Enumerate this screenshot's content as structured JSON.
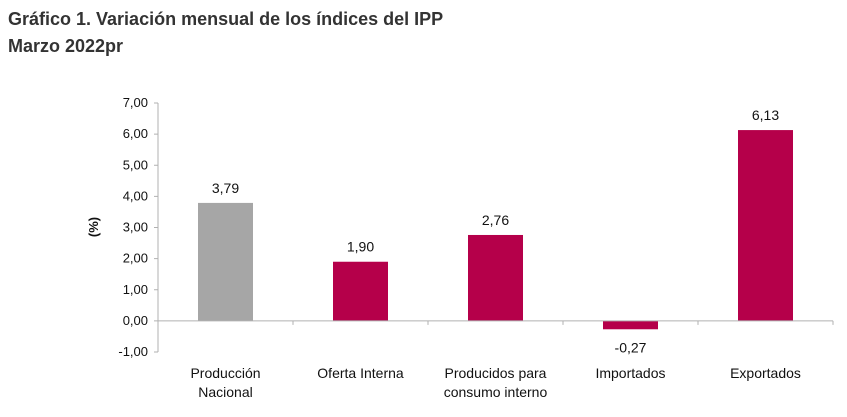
{
  "header": {
    "title": "Gráfico 1. Variación mensual de los índices del IPP",
    "subtitle": "Marzo 2022pr"
  },
  "colors": {
    "accent": "#B5004A",
    "gray": "#A6A6A6"
  },
  "chart_data": {
    "type": "bar",
    "title": "Gráfico 1. Variación mensual de los índices del IPP",
    "subtitle": "Marzo 2022pr",
    "ylabel": "(%)",
    "xlabel": "",
    "ylim": [
      -1,
      7
    ],
    "yticks": [
      "-1,00",
      "0,00",
      "1,00",
      "2,00",
      "3,00",
      "4,00",
      "5,00",
      "6,00",
      "7,00"
    ],
    "categories": [
      [
        "Producción",
        "Nacional"
      ],
      [
        "Oferta Interna"
      ],
      [
        "Producidos para",
        "consumo interno"
      ],
      [
        "Importados"
      ],
      [
        "Exportados"
      ]
    ],
    "values": [
      3.79,
      1.9,
      2.76,
      -0.27,
      6.13
    ],
    "value_labels": [
      "3,79",
      "1,90",
      "2,76",
      "-0,27",
      "6,13"
    ],
    "bar_colors": [
      "#A6A6A6",
      "#B5004A",
      "#B5004A",
      "#B5004A",
      "#B5004A"
    ],
    "grid": false,
    "legend": "none"
  }
}
